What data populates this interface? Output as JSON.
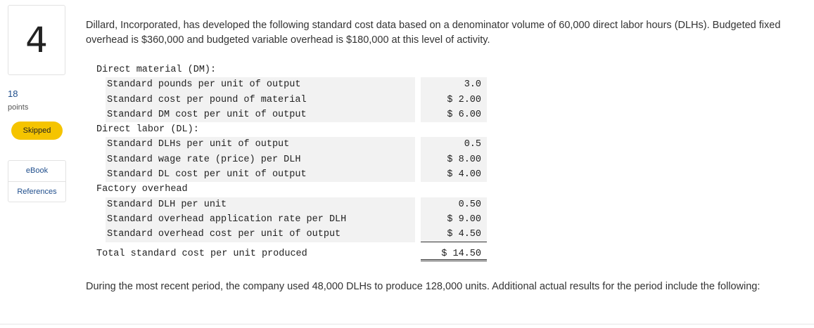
{
  "sidebar": {
    "question_number": "4",
    "points_value": "18",
    "points_label": "points",
    "status": "Skipped",
    "resources": {
      "ebook": "eBook",
      "references": "References"
    }
  },
  "question": {
    "intro": "Dillard, Incorporated, has developed the following standard cost data based on a denominator volume of 60,000 direct labor hours (DLHs). Budgeted fixed overhead is $360,000 and budgeted variable overhead is $180,000 at this level of activity.",
    "follow_up": "During the most recent period, the company used 48,000 DLHs to produce 128,000 units. Additional actual results for the period include the following:"
  },
  "cost_table": {
    "dm_header": "Direct material (DM):",
    "dm_rows": [
      {
        "label": "Standard pounds per unit of output",
        "value": "3.0"
      },
      {
        "label": "Standard cost per pound of material",
        "value": "$ 2.00"
      },
      {
        "label": "Standard DM cost per unit of output",
        "value": "$ 6.00"
      }
    ],
    "dl_header": "Direct labor (DL):",
    "dl_rows": [
      {
        "label": "Standard DLHs per unit of output",
        "value": "0.5"
      },
      {
        "label": "Standard wage rate (price) per DLH",
        "value": "$ 8.00"
      },
      {
        "label": "Standard DL cost per unit of output",
        "value": "$ 4.00"
      }
    ],
    "oh_header": "Factory overhead",
    "oh_rows": [
      {
        "label": "Standard DLH per unit",
        "value": "0.50"
      },
      {
        "label": "Standard overhead application rate per DLH",
        "value": "$ 9.00"
      },
      {
        "label": "Standard overhead cost per unit of output",
        "value": "$ 4.50"
      }
    ],
    "total_label": "Total standard cost per unit produced",
    "total_value": "$ 14.50"
  }
}
